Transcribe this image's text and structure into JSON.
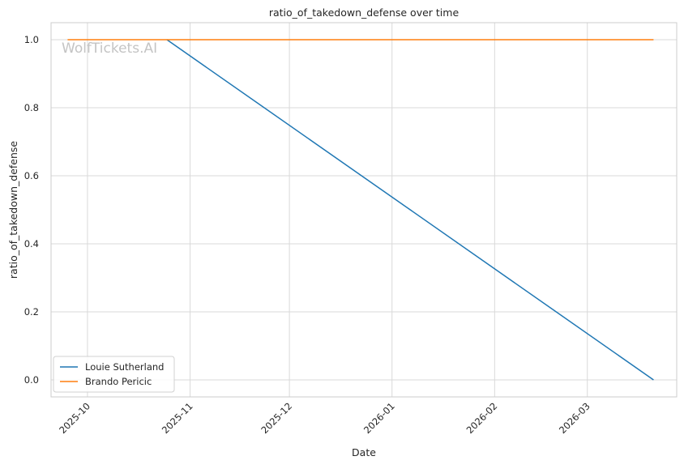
{
  "chart_data": {
    "type": "line",
    "title": "ratio_of_takedown_defense over time",
    "xlabel": "Date",
    "ylabel": "ratio_of_takedown_defense",
    "watermark": "WolfTickets.AI",
    "x_ticks": [
      "2025-10",
      "2025-11",
      "2025-12",
      "2026-01",
      "2026-02",
      "2026-03"
    ],
    "y_ticks": [
      "0.0",
      "0.2",
      "0.4",
      "0.6",
      "0.8",
      "1.0"
    ],
    "x_range": [
      "2025-09-20",
      "2026-03-28"
    ],
    "y_range": [
      -0.05,
      1.05
    ],
    "grid": true,
    "legend_position": "lower-left",
    "series": [
      {
        "name": "Louie Sutherland",
        "color": "#1f77b4",
        "points": [
          {
            "x": "2025-10-25",
            "y": 1.0
          },
          {
            "x": "2026-03-21",
            "y": 0.0
          }
        ]
      },
      {
        "name": "Brando Pericic",
        "color": "#ff7f0e",
        "points": [
          {
            "x": "2025-09-25",
            "y": 1.0
          },
          {
            "x": "2026-03-21",
            "y": 1.0
          }
        ]
      }
    ]
  }
}
